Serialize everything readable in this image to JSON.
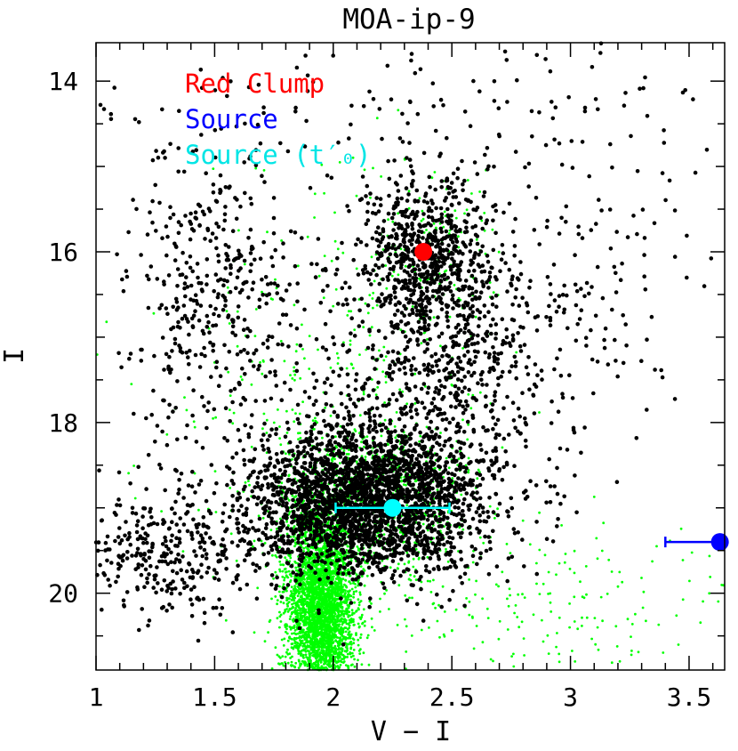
{
  "chart_data": {
    "type": "scatter",
    "title": "MOA-ip-9",
    "xlabel": "V − I",
    "ylabel": "I",
    "xlim": [
      1.0,
      3.65
    ],
    "ylim": [
      20.9,
      13.55
    ],
    "y_inverted": true,
    "x_ticks": [
      "1",
      "1.5",
      "2",
      "2.5",
      "3",
      "3.5"
    ],
    "x_tick_values": [
      1,
      1.5,
      2,
      2.5,
      3,
      3.5
    ],
    "y_ticks": [
      "14",
      "16",
      "18",
      "20"
    ],
    "y_tick_values": [
      14,
      16,
      18,
      20
    ],
    "legend_placement": "top-left",
    "legend": [
      {
        "label": "Red Clump",
        "color": "#ff0000"
      },
      {
        "label": "Source",
        "color": "#0000ff"
      },
      {
        "label": "Source (t′₀)",
        "color": "#00ffff"
      }
    ],
    "highlighted_points": [
      {
        "name": "Red Clump",
        "x": 2.38,
        "y": 16.0,
        "color": "#ff0000"
      },
      {
        "name": "Source",
        "x": 3.63,
        "y": 19.4,
        "xerr_low": 0.23,
        "xerr_high": 0,
        "color": "#0000ff"
      },
      {
        "name": "Source (t′₀)",
        "x": 2.25,
        "y": 19.0,
        "xerr_low": 0.24,
        "xerr_high": 0.24,
        "color": "#00ffff"
      }
    ],
    "series": [
      {
        "color": "#000000",
        "distribution": "bulge field stars",
        "clusters": [
          {
            "cx": 2.15,
            "cy": 18.9,
            "sx": 0.25,
            "sy": 0.45,
            "n": 2600
          },
          {
            "cx": 2.4,
            "cy": 16.0,
            "sx": 0.14,
            "sy": 0.45,
            "n": 650
          },
          {
            "cx": 1.5,
            "cy": 16.6,
            "sx": 0.18,
            "sy": 0.9,
            "n": 420
          },
          {
            "cx": 1.3,
            "cy": 19.5,
            "sx": 0.2,
            "sy": 0.4,
            "n": 350
          },
          {
            "cx": 2.5,
            "cy": 17.3,
            "sx": 0.28,
            "sy": 0.8,
            "n": 650
          },
          {
            "cx": 3.0,
            "cy": 16.0,
            "sx": 0.35,
            "sy": 1.3,
            "n": 170
          },
          {
            "cx": 2.3,
            "cy": 14.3,
            "sx": 0.8,
            "sy": 0.5,
            "n": 110
          }
        ]
      },
      {
        "color": "#00ff00",
        "distribution": "HST proper-motion cleaned stars",
        "clusters": [
          {
            "cx": 1.95,
            "cy": 20.2,
            "sx": 0.07,
            "sy": 0.55,
            "n": 3800
          },
          {
            "cx": 2.15,
            "cy": 18.9,
            "sx": 0.22,
            "sy": 0.45,
            "n": 900
          },
          {
            "cx": 2.4,
            "cy": 16.1,
            "sx": 0.13,
            "sy": 0.6,
            "n": 140
          },
          {
            "cx": 2.0,
            "cy": 17.5,
            "sx": 0.35,
            "sy": 1.3,
            "n": 260
          },
          {
            "cx": 2.8,
            "cy": 20.3,
            "sx": 0.45,
            "sy": 0.5,
            "n": 230
          }
        ]
      }
    ],
    "grid": false
  }
}
